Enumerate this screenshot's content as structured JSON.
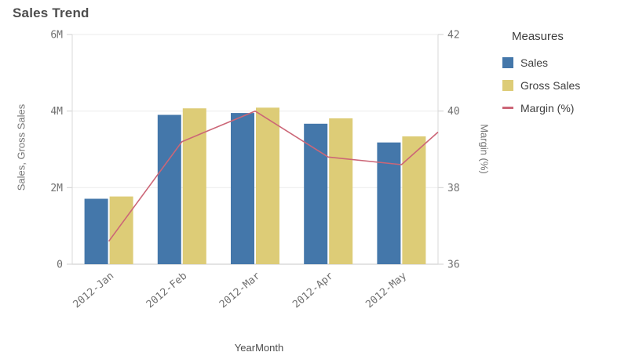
{
  "chart_data": {
    "type": "combo",
    "title": "Sales Trend",
    "categories": [
      "2012-Jan",
      "2012-Feb",
      "2012-Mar",
      "2012-Apr",
      "2012-May"
    ],
    "series": [
      {
        "name": "Sales",
        "render": "bar",
        "axis": "left",
        "color": "#4477aa",
        "values": [
          1710000,
          3900000,
          3950000,
          3670000,
          3180000
        ]
      },
      {
        "name": "Gross Sales",
        "render": "bar",
        "axis": "left",
        "color": "#ddcc77",
        "values": [
          1770000,
          4070000,
          4090000,
          3810000,
          3340000
        ]
      },
      {
        "name": "Margin (%)",
        "render": "line",
        "axis": "right",
        "color": "#cc6677",
        "values": [
          36.6,
          39.2,
          40.0,
          38.8,
          38.6
        ],
        "clipped_segment_exit_value": 39.45
      }
    ],
    "axes": {
      "x": {
        "label": "YearMonth"
      },
      "left": {
        "label": "Sales, Gross Sales",
        "min": 0,
        "max": 6000000,
        "tick_labels": [
          "0",
          "2M",
          "4M",
          "6M"
        ],
        "tick_values": [
          0,
          2000000,
          4000000,
          6000000
        ]
      },
      "right": {
        "label": "Margin (%)",
        "min": 36,
        "max": 42,
        "tick_labels": [
          "36",
          "38",
          "40",
          "42"
        ],
        "tick_values": [
          36,
          38,
          40,
          42
        ]
      }
    },
    "legend": {
      "title": "Measures",
      "position": "right"
    },
    "grid": true,
    "style": {
      "grid_color": "#ebebeb",
      "plot_border_color": "#d9d9d9",
      "axis_line_color": "#c9c9c9",
      "tick_mark_color": "#cfcfcf",
      "tick_text_color": "#707070",
      "title_color": "#4d4d4d"
    }
  }
}
